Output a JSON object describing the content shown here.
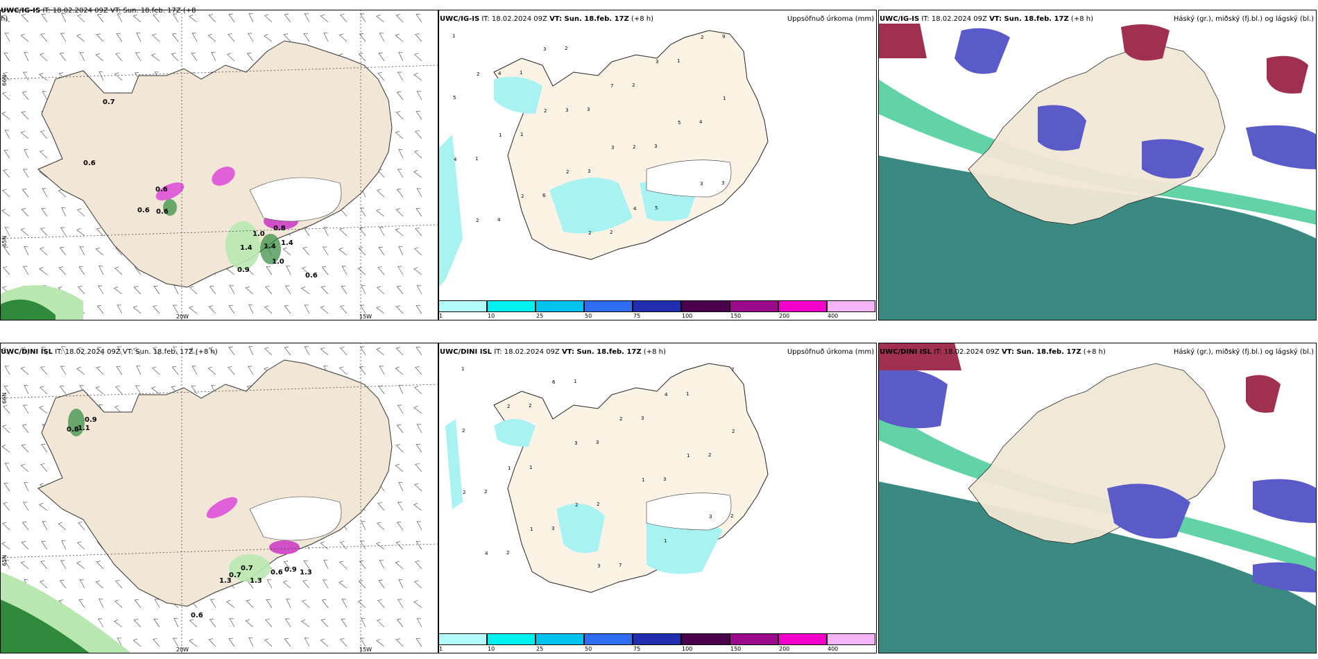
{
  "rows": [
    {
      "model": "UWC/IG-IS",
      "left_title_prefix": "IT: 18.02.2024 09Z VT: Sun. 18.feb. 17Z (+8",
      "left_title_suffix": "h)",
      "mid_it": "IT: 18.02.2024 09Z",
      "mid_vt": "VT: Sun. 18.feb. 17Z",
      "mid_lead": "(+8 h)",
      "right_it": "IT: 18.02.2024 09Z",
      "right_vt": "VT: Sun. 18.feb. 17Z",
      "right_lead": "(+8 h)",
      "precip_labels": [
        "0.6",
        "0.6",
        "0.6",
        "0.6",
        "1.0",
        "0.8",
        "1.4",
        "1.4",
        "1.4",
        "1.0",
        "0.9",
        "0.6",
        "0.7"
      ],
      "accum_labels": [
        "1",
        "1",
        "3",
        "3",
        "3",
        "4",
        "2",
        "2",
        "4",
        "1",
        "6",
        "2",
        "1",
        "5",
        "1",
        "3",
        "5",
        "9",
        "4",
        "3",
        "2",
        "3",
        "2",
        "3",
        "7",
        "5",
        "4",
        "2",
        "2",
        "3",
        "1",
        "1",
        "2",
        "4",
        "2",
        "2",
        "2",
        "3"
      ]
    },
    {
      "model": "UWC/DINI ISL",
      "left_title_prefix": "IT: 18.02.2024 09Z VT: Sun. 18.feb. 17Z (+8 h)",
      "left_title_suffix": "",
      "mid_it": "IT: 18.02.2024 09Z",
      "mid_vt": "VT: Sun. 18.feb. 17Z",
      "mid_lead": "(+8 h)",
      "right_it": "IT: 18.02.2024 09Z",
      "right_vt": "VT: Sun. 18.feb. 17Z",
      "right_lead": "(+8 h)",
      "precip_labels": [
        "0.9",
        "0.8",
        "1.1",
        "0.7",
        "0.7",
        "1.3",
        "0.6",
        "0.9",
        "1.3",
        "1.3",
        "0.6"
      ],
      "accum_labels": [
        "1",
        "2",
        "3",
        "3",
        "2",
        "2",
        "1",
        "3",
        "2",
        "2",
        "3",
        "7",
        "1",
        "2",
        "1",
        "2",
        "1",
        "7",
        "2",
        "3",
        "1",
        "3",
        "4",
        "6",
        "2",
        "1",
        "2",
        "1",
        "3",
        "4",
        "2",
        "1",
        "2"
      ]
    }
  ],
  "mid_right_label": "Uppsöfnuð úrkoma (mm)",
  "cloud_right_label": "Háský (gr.), miðský (fj.bl.) og lágský (bl.)",
  "lon_labels": [
    "20W",
    "15W"
  ],
  "lat_labels": [
    "66N",
    "65N"
  ],
  "colorbar": {
    "ticks": [
      "1",
      "10",
      "25",
      "50",
      "75",
      "100",
      "150",
      "200",
      "400"
    ],
    "colors": [
      "#b3fbfb",
      "#00f0f0",
      "#00c3f0",
      "#2e6cf0",
      "#1f2fb0",
      "#4a004a",
      "#9c0a8c",
      "#f000c8",
      "#f5b4f5"
    ]
  },
  "colors": {
    "land": "#f2e7d6",
    "land_mid": "#fdf2e6",
    "precip_light": "#b8e8b0",
    "precip_dark": "#1f7a2a",
    "snow_pink": "#e060d8",
    "accum_cyan": "#a8f2f2",
    "cloud_high": "#a03050",
    "cloud_mid": "#5a5ac8",
    "cloud_low": "#3aa09a",
    "cloud_green": "#3ac890"
  }
}
